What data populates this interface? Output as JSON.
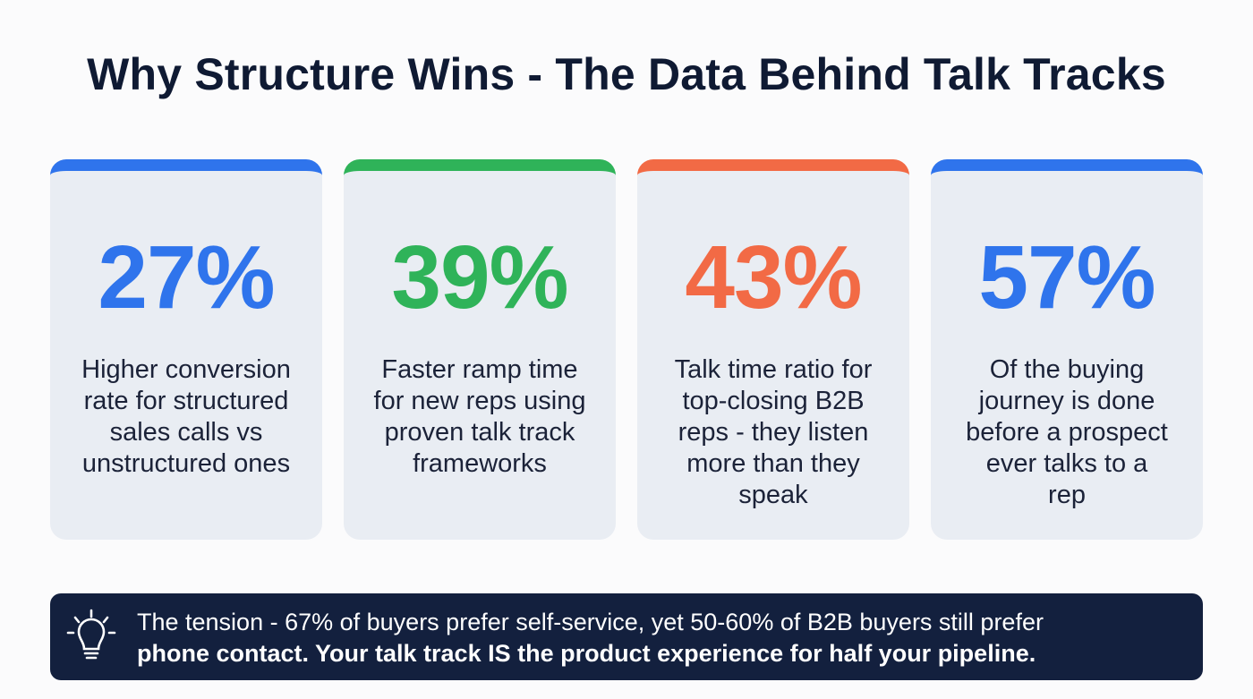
{
  "title": "Why Structure Wins - The Data Behind Talk Tracks",
  "cards": [
    {
      "stat": "27%",
      "description": "Higher conversion rate for structured sales calls vs unstructured ones",
      "color": "#2f74ec"
    },
    {
      "stat": "39%",
      "description": "Faster ramp time for new reps using proven talk track frameworks",
      "color": "#2fb359"
    },
    {
      "stat": "43%",
      "description": "Talk time ratio for top-closing B2B reps - they listen more than they speak",
      "color": "#f26a45"
    },
    {
      "stat": "57%",
      "description": "Of the buying journey is done before a prospect ever talks to a rep",
      "color": "#2f74ec"
    }
  ],
  "banner": {
    "icon": "lightbulb-icon",
    "line1": "The tension - 67% of buyers prefer self-service, yet 50-60% of B2B buyers still prefer",
    "line2": "phone contact. Your talk track IS the product experience for half your pipeline."
  }
}
